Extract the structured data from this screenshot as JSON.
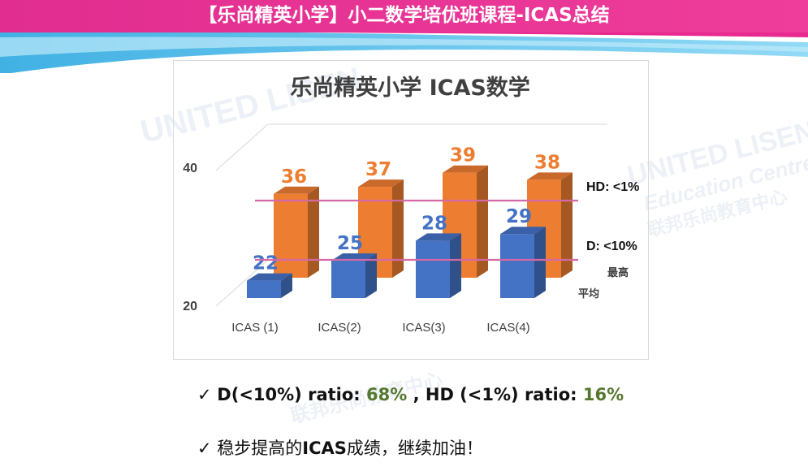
{
  "banner": {
    "title": "【乐尚精英小学】小二数学培优班课程-ICAS总结"
  },
  "watermark": {
    "brand_text": "UNITED LISEN",
    "subtitle_text": "Education Centre",
    "chinese_text": "联邦乐尚教育中心"
  },
  "chart_data": {
    "type": "bar",
    "title": "乐尚精英小学 ICAS数学",
    "categories": [
      "ICAS (1)",
      "ICAS(2)",
      "ICAS(3)",
      "ICAS(4)"
    ],
    "series": [
      {
        "name": "平均",
        "values": [
          22,
          25,
          28,
          29
        ],
        "color": "#4472c4",
        "labels": [
          "22",
          "25",
          "28",
          "29"
        ]
      },
      {
        "name": "最高",
        "values": [
          36,
          37,
          39,
          38
        ],
        "color": "#ed7d31",
        "labels": [
          "36",
          "37",
          "39",
          "38"
        ]
      }
    ],
    "yticks": [
      "20",
      "40"
    ],
    "ylim": [
      20,
      40
    ],
    "reference_lines": [
      {
        "label": "HD: <1%",
        "value": 34,
        "color": "#d36aa6"
      },
      {
        "label": "D: <10%",
        "value": 27,
        "color": "#d36aa6"
      }
    ],
    "legend_position": "right"
  },
  "summary": {
    "line1": {
      "check": "✓",
      "prefix": "D(<10%) ratio:  ",
      "d_value": "68%",
      "middle": " , HD (<1%) ratio: ",
      "hd_value": "16%"
    },
    "line2": {
      "check": "✓",
      "prefix": "稳步提高的",
      "bold": "ICAS",
      "suffix": "成绩，继续加油！"
    }
  },
  "colors": {
    "banner_magenta": "#e8298f",
    "banner_cyan": "#29b2e8",
    "bar_blue": "#4472c4",
    "bar_orange": "#ed7d31",
    "accent_green": "#55782f"
  }
}
